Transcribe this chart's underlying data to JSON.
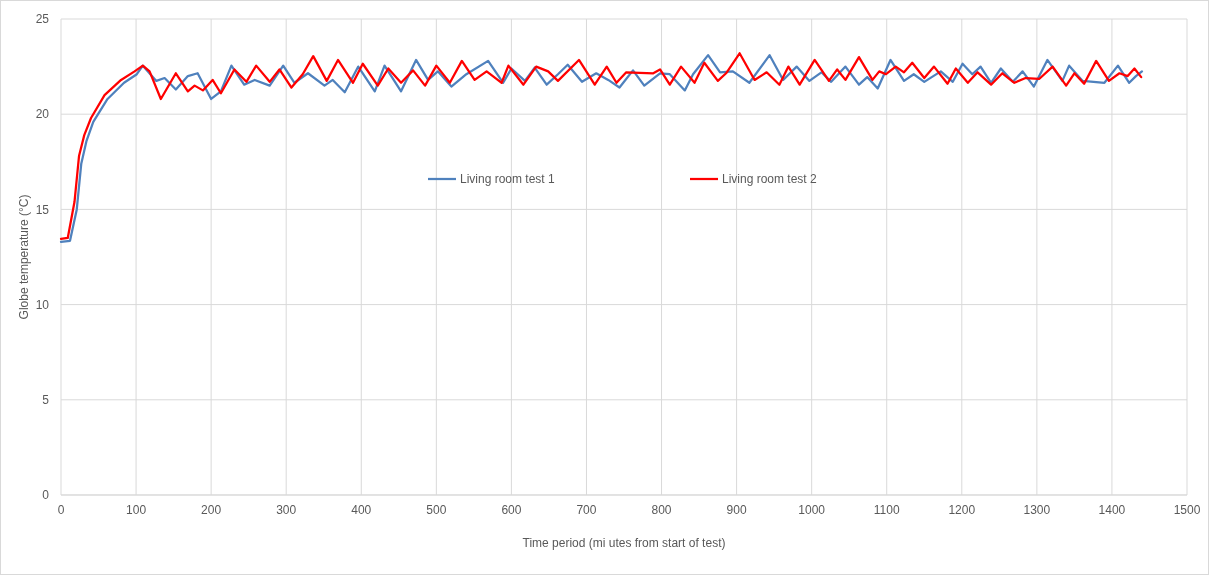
{
  "chart_data": {
    "type": "line",
    "xlabel": "Time period (mi utes from start of test)",
    "ylabel": "Globe temperature (°C)",
    "xlim": [
      0,
      1500
    ],
    "xticks": [
      0,
      100,
      200,
      300,
      400,
      500,
      600,
      700,
      800,
      900,
      1000,
      1100,
      1200,
      1300,
      1400,
      1500
    ],
    "ylim": [
      0,
      25
    ],
    "yticks": [
      0,
      5,
      10,
      15,
      20,
      25
    ],
    "grid": true,
    "legend": "top",
    "marker": "none",
    "line_style": "solid",
    "series": [
      {
        "name": "Living room test 1",
        "color": "#4f81bd",
        "x": [
          0,
          12,
          21,
          27,
          34,
          43,
          62,
          84,
          101,
          109,
          127,
          138,
          153,
          169,
          182,
          200,
          213,
          227,
          244,
          258,
          278,
          296,
          311,
          329,
          351,
          362,
          378,
          396,
          418,
          431,
          453,
          473,
          489,
          502,
          520,
          540,
          569,
          589,
          600,
          618,
          631,
          647,
          662,
          675,
          694,
          713,
          729,
          744,
          762,
          777,
          798,
          811,
          831,
          842,
          862,
          878,
          895,
          917,
          944,
          962,
          980,
          997,
          1013,
          1026,
          1045,
          1063,
          1074,
          1088,
          1105,
          1123,
          1136,
          1150,
          1172,
          1188,
          1201,
          1214,
          1225,
          1239,
          1252,
          1268,
          1281,
          1296,
          1314,
          1334,
          1343,
          1361,
          1390,
          1408,
          1423,
          1432,
          1440
        ],
        "values": [
          13.3,
          13.35,
          15.0,
          17.4,
          18.6,
          19.6,
          20.8,
          21.65,
          22.1,
          22.55,
          21.75,
          21.9,
          21.3,
          22.0,
          22.15,
          20.8,
          21.2,
          22.55,
          21.55,
          21.8,
          21.5,
          22.55,
          21.65,
          22.15,
          21.5,
          21.8,
          21.15,
          22.5,
          21.2,
          22.55,
          21.2,
          22.85,
          21.8,
          22.25,
          21.45,
          22.1,
          22.8,
          21.65,
          22.4,
          21.75,
          22.45,
          21.55,
          22.1,
          22.6,
          21.7,
          22.15,
          21.8,
          21.4,
          22.3,
          21.5,
          22.15,
          22.1,
          21.25,
          22.1,
          23.1,
          22.2,
          22.25,
          21.65,
          23.1,
          21.8,
          22.5,
          21.75,
          22.2,
          21.7,
          22.5,
          21.55,
          21.95,
          21.35,
          22.85,
          21.75,
          22.1,
          21.7,
          22.25,
          21.7,
          22.65,
          22.1,
          22.5,
          21.65,
          22.4,
          21.7,
          22.25,
          21.45,
          22.85,
          21.75,
          22.55,
          21.75,
          21.65,
          22.55,
          21.65,
          22.0,
          22.25
        ]
      },
      {
        "name": "Living room test 2",
        "color": "#ff0000",
        "x": [
          0,
          9,
          18,
          24,
          31,
          40,
          58,
          80,
          98,
          109,
          118,
          133,
          153,
          169,
          178,
          189,
          202,
          213,
          231,
          247,
          260,
          278,
          291,
          307,
          322,
          336,
          354,
          369,
          389,
          402,
          422,
          436,
          453,
          469,
          485,
          500,
          518,
          534,
          551,
          567,
          587,
          596,
          616,
          633,
          649,
          662,
          690,
          711,
          727,
          740,
          753,
          789,
          798,
          811,
          826,
          844,
          857,
          875,
          886,
          904,
          924,
          940,
          957,
          969,
          984,
          1004,
          1023,
          1034,
          1045,
          1063,
          1081,
          1090,
          1099,
          1112,
          1123,
          1134,
          1150,
          1163,
          1181,
          1192,
          1208,
          1221,
          1239,
          1254,
          1270,
          1285,
          1303,
          1321,
          1339,
          1350,
          1363,
          1379,
          1396,
          1410,
          1421,
          1430,
          1439
        ],
        "values": [
          13.45,
          13.5,
          15.4,
          17.8,
          18.9,
          19.8,
          21.0,
          21.8,
          22.25,
          22.55,
          22.25,
          20.8,
          22.15,
          21.2,
          21.5,
          21.25,
          21.8,
          21.1,
          22.35,
          21.7,
          22.55,
          21.7,
          22.35,
          21.4,
          22.1,
          23.05,
          21.75,
          22.85,
          21.65,
          22.65,
          21.5,
          22.4,
          21.65,
          22.3,
          21.5,
          22.55,
          21.65,
          22.8,
          21.8,
          22.25,
          21.65,
          22.55,
          21.55,
          22.5,
          22.25,
          21.75,
          22.85,
          21.55,
          22.5,
          21.65,
          22.2,
          22.15,
          22.35,
          21.55,
          22.5,
          21.65,
          22.7,
          21.75,
          22.15,
          23.2,
          21.8,
          22.2,
          21.55,
          22.5,
          21.55,
          22.85,
          21.75,
          22.35,
          21.8,
          23.0,
          21.8,
          22.25,
          22.1,
          22.5,
          22.2,
          22.7,
          21.9,
          22.5,
          21.6,
          22.4,
          21.65,
          22.2,
          21.55,
          22.15,
          21.65,
          21.9,
          21.85,
          22.5,
          21.5,
          22.15,
          21.6,
          22.8,
          21.75,
          22.15,
          22.0,
          22.4,
          21.95
        ]
      }
    ]
  }
}
